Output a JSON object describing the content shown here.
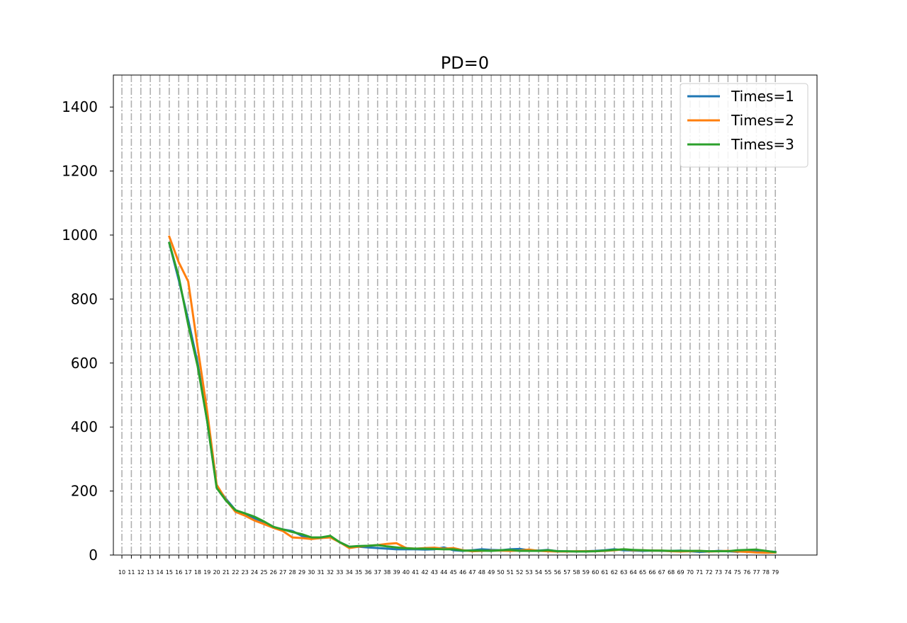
{
  "chart_data": {
    "type": "line",
    "title": "PD=0",
    "xlabel": "",
    "ylabel": "",
    "xlim": [
      9.1,
      83.4
    ],
    "ylim": [
      0,
      1500
    ],
    "x_ticks": [
      10,
      11,
      12,
      13,
      14,
      15,
      16,
      17,
      18,
      19,
      20,
      21,
      22,
      23,
      24,
      25,
      26,
      27,
      28,
      29,
      30,
      31,
      32,
      33,
      34,
      35,
      36,
      37,
      38,
      39,
      40,
      41,
      42,
      43,
      44,
      45,
      46,
      47,
      48,
      49,
      50,
      51,
      52,
      53,
      54,
      55,
      56,
      57,
      58,
      59,
      60,
      61,
      62,
      63,
      64,
      65,
      66,
      67,
      68,
      69,
      70,
      71,
      72,
      73,
      74,
      75,
      76,
      77,
      78,
      79
    ],
    "y_ticks": [
      0,
      200,
      400,
      600,
      800,
      1000,
      1200,
      1400
    ],
    "grid": {
      "x": true,
      "y": false,
      "style": "dash-dot",
      "color": "#b0b0b0"
    },
    "legend_position": "top-right",
    "x": [
      15,
      16,
      17,
      18,
      19,
      20,
      21,
      22,
      23,
      24,
      25,
      26,
      27,
      28,
      29,
      30,
      31,
      32,
      33,
      34,
      35,
      36,
      37,
      38,
      39,
      40,
      41,
      42,
      43,
      44,
      45,
      46,
      47,
      48,
      49,
      50,
      51,
      52,
      53,
      54,
      55,
      56,
      57,
      58,
      59,
      60,
      61,
      62,
      63,
      64,
      65,
      66,
      67,
      68,
      69,
      70,
      71,
      72,
      73,
      74,
      75,
      76,
      77,
      78,
      79
    ],
    "series": [
      {
        "name": "Times=1",
        "color": "#1f77b4",
        "values": [
          975,
          860,
          735,
          600,
          420,
          215,
          175,
          140,
          128,
          115,
          100,
          87,
          80,
          75,
          60,
          52,
          53,
          58,
          40,
          26,
          26,
          24,
          22,
          20,
          18,
          18,
          18,
          17,
          18,
          24,
          15,
          13,
          15,
          18,
          16,
          15,
          18,
          19,
          15,
          14,
          16,
          12,
          11,
          11,
          12,
          13,
          15,
          18,
          15,
          14,
          13,
          14,
          13,
          13,
          14,
          12,
          10,
          11,
          13,
          12,
          10,
          14,
          13,
          12,
          10
        ]
      },
      {
        "name": "Times=2",
        "color": "#ff7f0e",
        "values": [
          995,
          915,
          855,
          650,
          450,
          220,
          172,
          135,
          123,
          108,
          97,
          85,
          75,
          55,
          53,
          50,
          53,
          55,
          40,
          22,
          26,
          29,
          31,
          35,
          37,
          22,
          20,
          22,
          23,
          20,
          22,
          15,
          12,
          13,
          14,
          14,
          13,
          14,
          17,
          13,
          12,
          11,
          11,
          12,
          12,
          12,
          13,
          15,
          18,
          15,
          15,
          14,
          14,
          12,
          11,
          12,
          13,
          11,
          12,
          13,
          11,
          10,
          8,
          7,
          8
        ]
      },
      {
        "name": "Times=3",
        "color": "#2ca02c",
        "values": [
          975,
          870,
          720,
          590,
          420,
          210,
          170,
          140,
          130,
          120,
          105,
          88,
          80,
          72,
          65,
          55,
          55,
          60,
          40,
          26,
          28,
          29,
          31,
          27,
          24,
          21,
          20,
          20,
          19,
          18,
          18,
          14,
          14,
          14,
          13,
          15,
          16,
          13,
          13,
          13,
          15,
          12,
          12,
          11,
          11,
          12,
          14,
          16,
          18,
          16,
          15,
          14,
          14,
          13,
          13,
          13,
          13,
          12,
          12,
          12,
          15,
          16,
          17,
          13,
          9
        ]
      }
    ]
  }
}
